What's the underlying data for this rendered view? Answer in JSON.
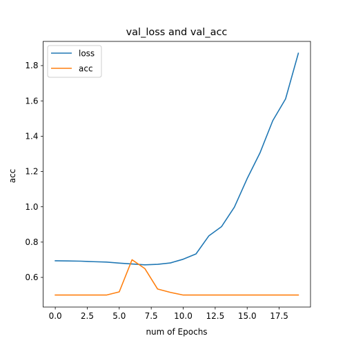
{
  "chart_data": {
    "type": "line",
    "title": "val_loss and val_acc",
    "xlabel": "num of Epochs",
    "ylabel": "acc",
    "x": [
      0,
      1,
      2,
      3,
      4,
      5,
      6,
      7,
      8,
      9,
      10,
      11,
      12,
      13,
      14,
      15,
      16,
      17,
      18,
      19
    ],
    "xlim": [
      -0.95,
      19.95
    ],
    "ylim": [
      0.432,
      1.937
    ],
    "xticks": [
      0.0,
      2.5,
      5.0,
      7.5,
      10.0,
      12.5,
      15.0,
      17.5
    ],
    "xtick_labels": [
      "0.0",
      "2.5",
      "5.0",
      "7.5",
      "10.0",
      "12.5",
      "15.0",
      "17.5"
    ],
    "yticks": [
      0.6,
      0.8,
      1.0,
      1.2,
      1.4,
      1.6,
      1.8
    ],
    "ytick_labels": [
      "0.6",
      "0.8",
      "1.0",
      "1.2",
      "1.4",
      "1.6",
      "1.8"
    ],
    "grid": false,
    "legend_position": "top-left",
    "series": [
      {
        "name": "loss",
        "color": "#1f77b4",
        "values": [
          0.694,
          0.693,
          0.692,
          0.689,
          0.687,
          0.681,
          0.676,
          0.671,
          0.674,
          0.682,
          0.703,
          0.733,
          0.835,
          0.888,
          0.998,
          1.16,
          1.305,
          1.488,
          1.611,
          1.87
        ]
      },
      {
        "name": "acc",
        "color": "#ff7f0e",
        "values": [
          0.5,
          0.5,
          0.5,
          0.5,
          0.5,
          0.518,
          0.7,
          0.65,
          0.534,
          0.515,
          0.5,
          0.5,
          0.5,
          0.5,
          0.5,
          0.5,
          0.5,
          0.5,
          0.5,
          0.5
        ]
      }
    ]
  }
}
